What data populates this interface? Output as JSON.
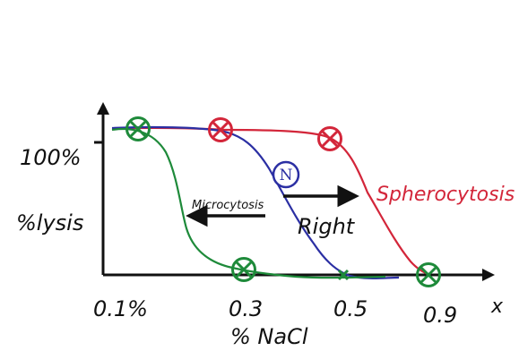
{
  "colors": {
    "axis": "#111111",
    "normal": "#2b2fa3",
    "microcytosis": "#1e8a3a",
    "spherocytosis": "#d3263a",
    "arrow": "#111111"
  },
  "chart_data": {
    "type": "line",
    "xlabel": "% NaCl",
    "ylabel": "%lysis",
    "x_axis_end_label": "x",
    "y_tick_label": "100%",
    "x_tick_labels": [
      "0.1%",
      "0.3",
      "0.5",
      "0.9"
    ],
    "annotations": {
      "normal_marker": "N",
      "left_arrow_label": "Microcytosis",
      "right_arrow_label": "Right",
      "series_label_spherocytosis": "Spherocytosis"
    },
    "series": [
      {
        "name": "Microcytosis",
        "color": "#1e8a3a",
        "x": [
          0.1,
          0.14,
          0.18,
          0.22,
          0.26,
          0.3,
          0.4,
          0.5,
          0.7,
          0.9
        ],
        "y": [
          100,
          99,
          85,
          25,
          6,
          2,
          0,
          0,
          0,
          0
        ]
      },
      {
        "name": "Normal",
        "color": "#2b2fa3",
        "x": [
          0.1,
          0.2,
          0.28,
          0.36,
          0.4,
          0.44,
          0.48,
          0.52,
          0.6,
          0.9
        ],
        "y": [
          100,
          100,
          98,
          80,
          55,
          30,
          10,
          3,
          0,
          0
        ]
      },
      {
        "name": "Spherocytosis",
        "color": "#d3263a",
        "x": [
          0.1,
          0.3,
          0.5,
          0.62,
          0.7,
          0.75,
          0.8,
          0.85,
          0.9
        ],
        "y": [
          100,
          100,
          96,
          85,
          60,
          30,
          12,
          3,
          0
        ]
      }
    ],
    "markers": [
      {
        "series": "Microcytosis",
        "x": 0.13,
        "y": 100
      },
      {
        "series": "Microcytosis",
        "x": 0.3,
        "y": 3
      },
      {
        "series": "Microcytosis",
        "x": 0.5,
        "y": 0
      },
      {
        "series": "Spherocytosis",
        "x": 0.24,
        "y": 100
      },
      {
        "series": "Spherocytosis",
        "x": 0.5,
        "y": 94
      },
      {
        "series": "Spherocytosis",
        "x": 0.9,
        "y": 0
      }
    ],
    "ylim": [
      0,
      100
    ],
    "xlim": [
      0.1,
      0.9
    ]
  }
}
